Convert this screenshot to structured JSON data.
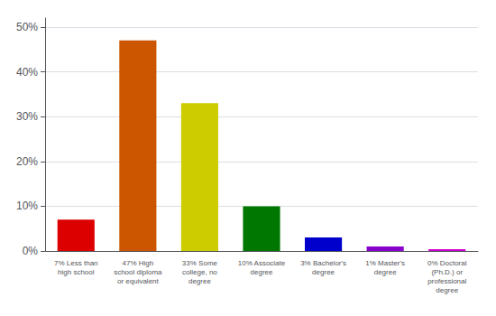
{
  "chart_data": {
    "type": "bar",
    "categories": [
      "7% Less than\nhigh school",
      "47% High\nschool diploma\nor equivalent",
      "33% Some\ncollege, no\ndegree",
      "10% Associate\ndegree",
      "3% Bachelor's\ndegree",
      "1% Master's\ndegree",
      "0% Doctoral\n(Ph.D.) or\nprofessional\ndegree"
    ],
    "values": [
      7,
      47,
      33,
      10,
      3,
      1,
      0.4
    ],
    "colors": [
      "#dd0000",
      "#cc5500",
      "#cccc00",
      "#007700",
      "#0000cc",
      "#8800cc",
      "#cc00cc"
    ],
    "ylim": [
      0,
      52
    ],
    "yticks": [
      {
        "value": 0,
        "label": "0%"
      },
      {
        "value": 10,
        "label": "10%"
      },
      {
        "value": 20,
        "label": "20%"
      },
      {
        "value": 30,
        "label": "30%"
      },
      {
        "value": 40,
        "label": "40%"
      },
      {
        "value": 50,
        "label": "50%"
      }
    ],
    "grid": true
  }
}
